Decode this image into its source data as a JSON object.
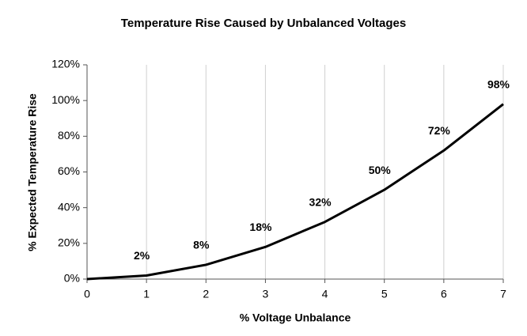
{
  "chart_data": {
    "type": "line",
    "title": "Temperature Rise Caused by Unbalanced Voltages",
    "xlabel": "% Voltage Unbalance",
    "ylabel": "% Expected Temperature Rise",
    "x": [
      0,
      1,
      2,
      3,
      4,
      5,
      6,
      7
    ],
    "values": [
      0,
      2,
      8,
      18,
      32,
      50,
      72,
      98
    ],
    "value_labels": [
      null,
      "2%",
      "8%",
      "18%",
      "32%",
      "50%",
      "72%",
      "98%"
    ],
    "color": "#000000",
    "xlim": [
      0,
      7
    ],
    "xticks": [
      0,
      1,
      2,
      3,
      4,
      5,
      6,
      7
    ],
    "ylim": [
      0,
      120
    ],
    "yticks": [
      {
        "value": 0,
        "label": "0%"
      },
      {
        "value": 20,
        "label": "20%"
      },
      {
        "value": 40,
        "label": "40%"
      },
      {
        "value": 60,
        "label": "60%"
      },
      {
        "value": 80,
        "label": "80%"
      },
      {
        "value": 100,
        "label": "100%"
      },
      {
        "value": 120,
        "label": "120%"
      }
    ],
    "grid": "x"
  }
}
